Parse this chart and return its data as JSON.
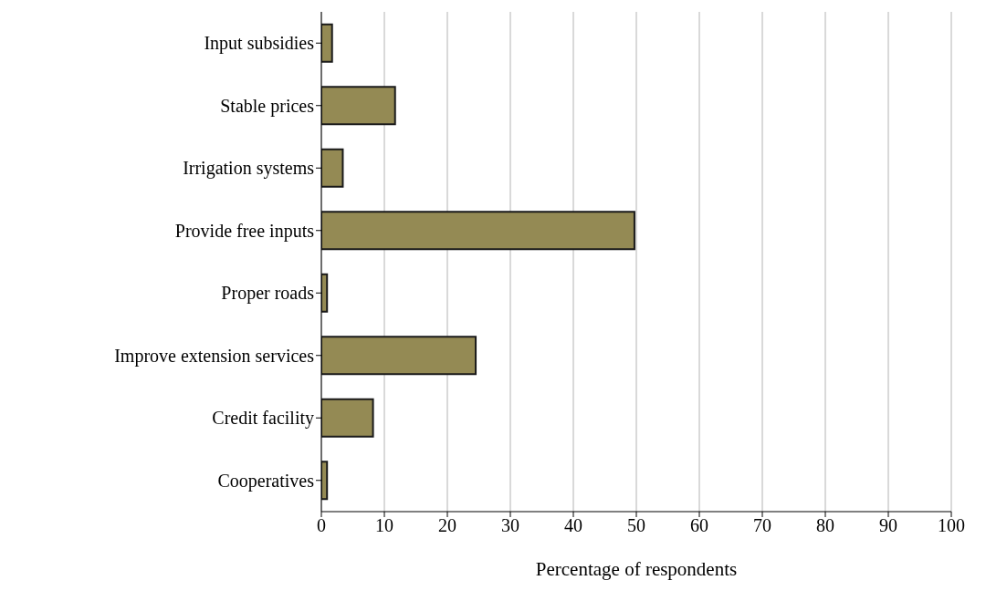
{
  "chart_data": {
    "type": "bar",
    "orientation": "horizontal",
    "xlabel": "Percentage of respondents",
    "categories": [
      "Input subsidies",
      "Stable prices",
      "Irrigation systems",
      "Provide free inputs",
      "Proper roads",
      "Improve extension services",
      "Credit facility",
      "Cooperatives"
    ],
    "values": [
      1.7,
      11.7,
      3.4,
      49.7,
      0.9,
      24.5,
      8.2,
      0.9
    ],
    "color": "#948a54",
    "xlim": [
      0,
      100
    ],
    "xticks": [
      0,
      10,
      20,
      30,
      40,
      50,
      60,
      70,
      80,
      90,
      100
    ],
    "grid": "x"
  }
}
